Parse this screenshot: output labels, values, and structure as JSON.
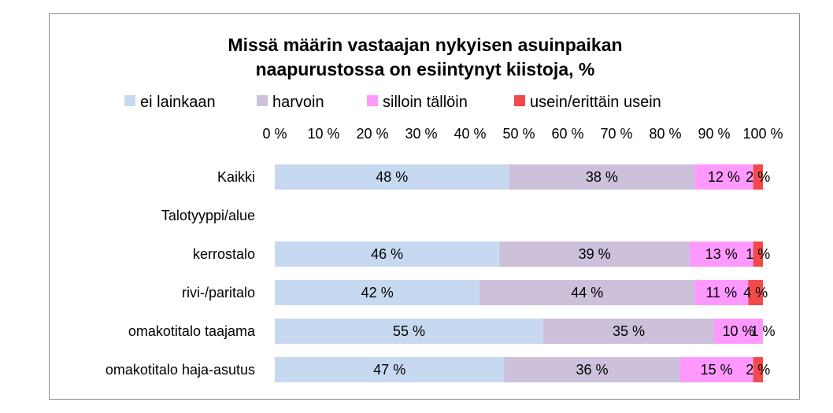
{
  "chart_data": {
    "type": "bar",
    "orientation": "horizontal",
    "stacked": true,
    "title": "Missä määrin vastaajan nykyisen asuinpaikan naapurustossa on esiintynyt kiistoja, %",
    "title_lines": [
      "Missä määrin vastaajan nykyisen asuinpaikan",
      "naapurustossa on esiintynyt kiistoja, %"
    ],
    "categories": [
      "Kaikki",
      "Talotyyppi/alue",
      "kerrostalo",
      "rivi-/paritalo",
      "omakotitalo taajama",
      "omakotitalo haja-asutus"
    ],
    "series": [
      {
        "name": "ei lainkaan",
        "color": "#c6d9f0",
        "values": [
          48,
          null,
          46,
          42,
          55,
          47
        ],
        "labels": [
          "48 %",
          "",
          "46 %",
          "42 %",
          "55 %",
          "47 %"
        ]
      },
      {
        "name": "harvoin",
        "color": "#ccc0da",
        "values": [
          38,
          null,
          39,
          44,
          35,
          36
        ],
        "labels": [
          "38 %",
          "",
          "39 %",
          "44 %",
          "35 %",
          "36 %"
        ]
      },
      {
        "name": "silloin tällöin",
        "color": "#ff99ff",
        "values": [
          12,
          null,
          13,
          11,
          10,
          15
        ],
        "labels": [
          "12 %",
          "",
          "13 %",
          "11 %",
          "10 %",
          "15 %"
        ]
      },
      {
        "name": "usein/erittäin usein",
        "color": "#f04a4a",
        "values": [
          2,
          null,
          1,
          4,
          1,
          2
        ],
        "labels": [
          "2 %",
          "",
          "1 %",
          "4 %",
          "1 %",
          "2 %"
        ]
      }
    ],
    "xlim": [
      0,
      100
    ],
    "x_ticks": [
      "0 %",
      "10 %",
      "20 %",
      "30 %",
      "40 %",
      "50 %",
      "60 %",
      "70 %",
      "80 %",
      "90 %",
      "100 %"
    ],
    "x_axis_position": "top",
    "legend_position": "top",
    "grid": false
  }
}
